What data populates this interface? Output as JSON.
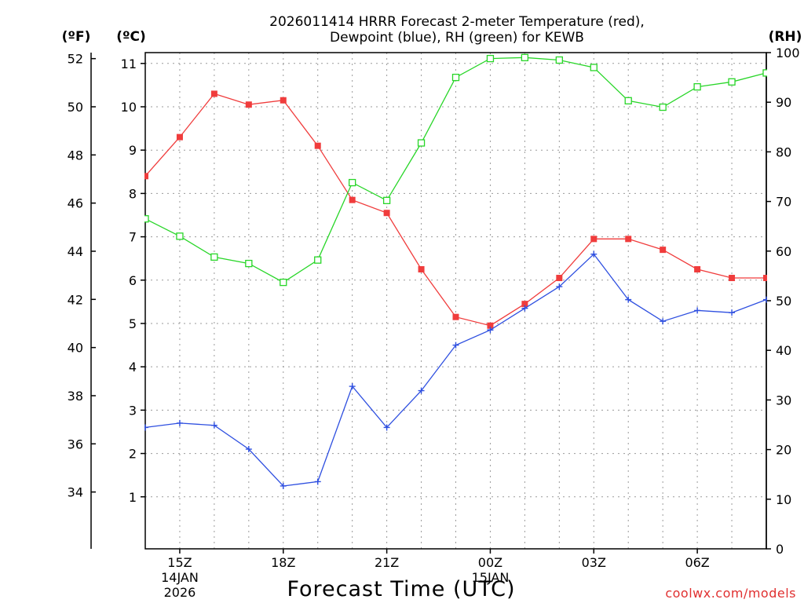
{
  "chart_data": {
    "type": "line",
    "title_line1": "2026011414 HRRR Forecast 2-meter Temperature (red),",
    "title_line2": "Dewpoint (blue), RH (green) for KEWB",
    "xlabel": "Forecast Time (UTC)",
    "credit": "coolwx.com/models",
    "units": {
      "fahrenheit": "(ºF)",
      "celsius": "(ºC)",
      "rh": "(RH)"
    },
    "x_hours": [
      14,
      15,
      16,
      17,
      18,
      19,
      20,
      21,
      22,
      23,
      24,
      25,
      26,
      27,
      28,
      29,
      30,
      31,
      32
    ],
    "xlim": [
      14,
      32
    ],
    "x_ticks": [
      {
        "hour": 15,
        "lines": [
          "15Z",
          "14JAN",
          "2026"
        ]
      },
      {
        "hour": 18,
        "lines": [
          "18Z"
        ]
      },
      {
        "hour": 21,
        "lines": [
          "21Z"
        ]
      },
      {
        "hour": 24,
        "lines": [
          "00Z",
          "15JAN"
        ]
      },
      {
        "hour": 27,
        "lines": [
          "03Z"
        ]
      },
      {
        "hour": 30,
        "lines": [
          "06Z"
        ]
      }
    ],
    "y_celsius": {
      "ylim": [
        -0.2,
        11.25
      ],
      "ticks": [
        1,
        2,
        3,
        4,
        5,
        6,
        7,
        8,
        9,
        10,
        11
      ]
    },
    "y_fahrenheit": {
      "ticks": [
        34,
        36,
        38,
        40,
        42,
        44,
        46,
        48,
        50,
        52
      ]
    },
    "y_rh": {
      "ylim": [
        0,
        100
      ],
      "ticks": [
        0,
        10,
        20,
        30,
        40,
        50,
        60,
        70,
        80,
        90,
        100
      ]
    },
    "series": [
      {
        "name": "Temperature",
        "units": "C",
        "axis": "celsius",
        "color": "#f03c3c",
        "marker": "filled-square",
        "values": [
          8.4,
          9.3,
          10.3,
          10.05,
          10.15,
          9.1,
          7.85,
          7.55,
          6.25,
          5.15,
          4.95,
          5.45,
          6.05,
          6.95,
          6.95,
          6.7,
          6.25,
          6.05,
          6.05
        ]
      },
      {
        "name": "Dewpoint",
        "units": "C",
        "axis": "celsius",
        "color": "#2e4fe0",
        "marker": "plus",
        "values": [
          2.6,
          2.7,
          2.65,
          2.1,
          1.25,
          1.35,
          3.55,
          2.6,
          3.45,
          4.5,
          4.85,
          5.35,
          5.85,
          6.6,
          5.55,
          5.05,
          5.3,
          5.25,
          5.55
        ]
      },
      {
        "name": "RH",
        "units": "%",
        "axis": "rh",
        "color": "#28d628",
        "marker": "open-square",
        "values": [
          66.5,
          63.0,
          58.8,
          57.5,
          53.7,
          58.2,
          73.8,
          70.2,
          81.8,
          95.0,
          98.8,
          99.0,
          98.5,
          97.0,
          90.3,
          89.0,
          93.1,
          94.1,
          95.9
        ]
      }
    ]
  }
}
